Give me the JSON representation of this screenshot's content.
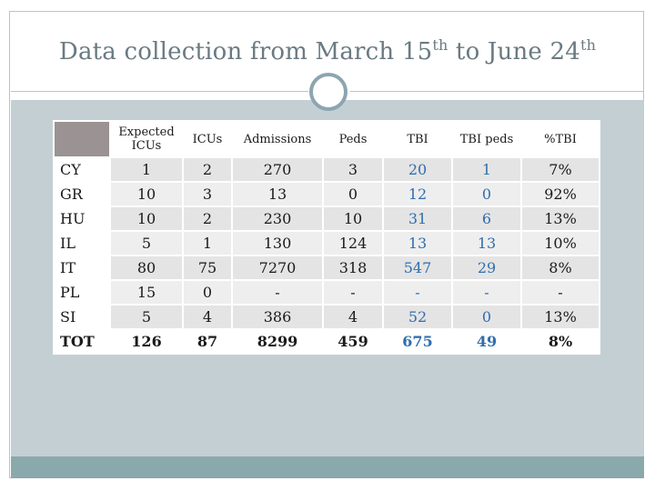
{
  "slide": {
    "title_prefix": "Data collection from March 15",
    "title_sup1": "th",
    "title_middle": " to June 24",
    "title_sup2": "th"
  },
  "table": {
    "headers": [
      "",
      "Expected ICUs",
      "ICUs",
      "Admissions",
      "Peds",
      "TBI",
      "TBI peds",
      "%TBI"
    ],
    "rows": [
      {
        "country": "CY",
        "expected": "1",
        "icus": "2",
        "admissions": "270",
        "peds": "3",
        "tbi": "20",
        "tbi_peds": "1",
        "pct": "7%"
      },
      {
        "country": "GR",
        "expected": "10",
        "icus": "3",
        "admissions": "13",
        "peds": "0",
        "tbi": "12",
        "tbi_peds": "0",
        "pct": "92%"
      },
      {
        "country": "HU",
        "expected": "10",
        "icus": "2",
        "admissions": "230",
        "peds": "10",
        "tbi": "31",
        "tbi_peds": "6",
        "pct": "13%"
      },
      {
        "country": "IL",
        "expected": "5",
        "icus": "1",
        "admissions": "130",
        "peds": "124",
        "tbi": "13",
        "tbi_peds": "13",
        "pct": "10%"
      },
      {
        "country": "IT",
        "expected": "80",
        "icus": "75",
        "admissions": "7270",
        "peds": "318",
        "tbi": "547",
        "tbi_peds": "29",
        "pct": "8%"
      },
      {
        "country": "PL",
        "expected": "15",
        "icus": "0",
        "admissions": "-",
        "peds": "-",
        "tbi": "-",
        "tbi_peds": "-",
        "pct": "-"
      },
      {
        "country": "SI",
        "expected": "5",
        "icus": "4",
        "admissions": "386",
        "peds": "4",
        "tbi": "52",
        "tbi_peds": "0",
        "pct": "13%"
      }
    ],
    "total": {
      "country": "TOT",
      "expected": "126",
      "icus": "87",
      "admissions": "8299",
      "peds": "459",
      "tbi": "675",
      "tbi_peds": "49",
      "pct": "8%"
    }
  },
  "colors": {
    "title": "#6a7a82",
    "content_background": "#c4cfd4",
    "footer_bar": "#8aa9ad",
    "header_corner": "#9a9293",
    "tbi_blue": "#2e6eae",
    "circle_ring": "#8ca5b0"
  }
}
